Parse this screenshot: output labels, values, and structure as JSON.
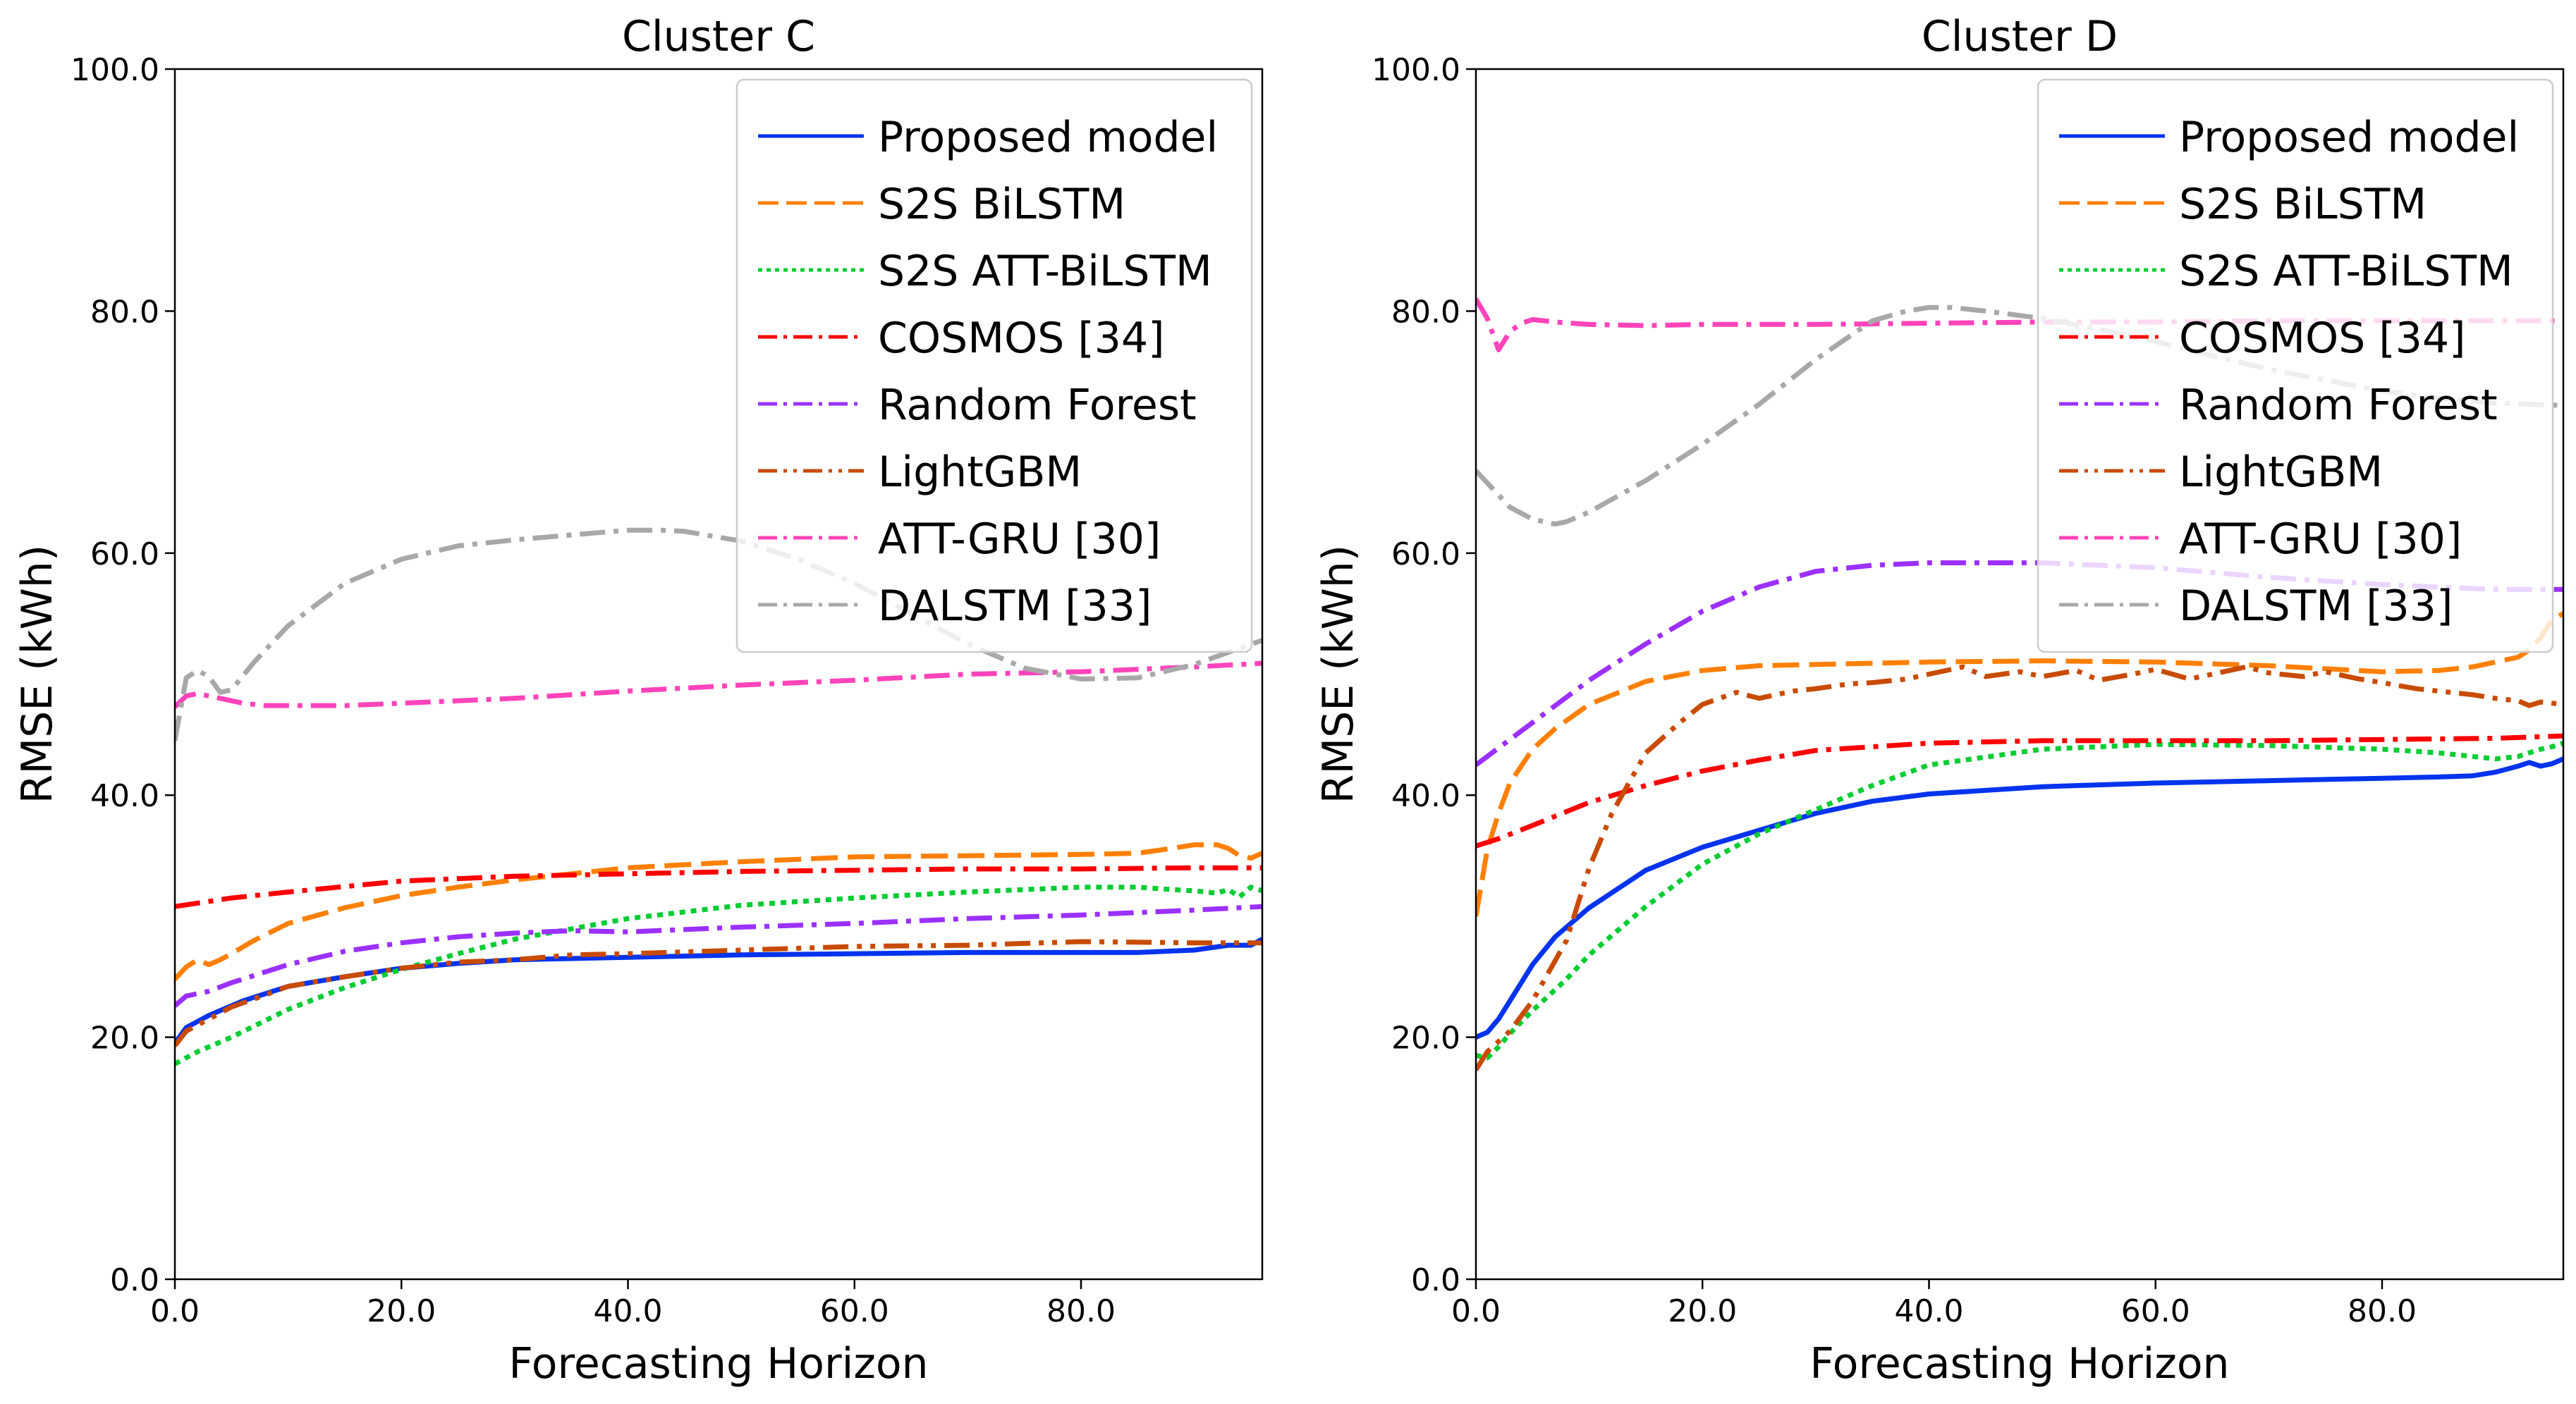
{
  "chart_data": [
    {
      "type": "line",
      "title": "Cluster C",
      "xlabel": "Forecasting Horizon",
      "ylabel": "RMSE (kWh)",
      "xlim": [
        0,
        96
      ],
      "ylim": [
        0,
        100
      ],
      "xticks": [
        0,
        20,
        40,
        60,
        80
      ],
      "yticks": [
        0,
        20,
        40,
        60,
        80,
        100
      ],
      "x_tick_labels": [
        "0.0",
        "20.0",
        "40.0",
        "60.0",
        "80.0"
      ],
      "y_tick_labels": [
        "0.0",
        "20.0",
        "40.0",
        "60.0",
        "80.0",
        "100.0"
      ],
      "grid": false,
      "legend_position": "top-right",
      "series": [
        {
          "name": "Proposed model",
          "color": "#0033ee",
          "dash": "solid",
          "x": [
            0,
            1,
            3,
            6,
            10,
            15,
            20,
            25,
            30,
            40,
            50,
            60,
            70,
            80,
            85,
            90,
            93,
            95,
            96
          ],
          "values": [
            19.5,
            20.8,
            21.8,
            23,
            24.2,
            25,
            25.7,
            26.1,
            26.4,
            26.6,
            26.8,
            26.9,
            27,
            27,
            27,
            27.2,
            27.6,
            27.6,
            28.1
          ]
        },
        {
          "name": "S2S BiLSTM",
          "color": "#ff8000",
          "dash": "dashed",
          "x": [
            0,
            1,
            2,
            3,
            4,
            5,
            7,
            10,
            15,
            20,
            25,
            30,
            40,
            50,
            60,
            70,
            80,
            85,
            88,
            90,
            92,
            93,
            94,
            95,
            96
          ],
          "values": [
            24.8,
            25.8,
            26.4,
            26,
            26.4,
            26.9,
            28,
            29.4,
            30.7,
            31.7,
            32.4,
            33,
            34,
            34.5,
            34.9,
            35,
            35.1,
            35.2,
            35.6,
            35.9,
            35.9,
            35.6,
            35,
            34.8,
            35.2
          ]
        },
        {
          "name": "S2S ATT-BiLSTM",
          "color": "#00cc33",
          "dash": "dotted",
          "x": [
            0,
            2,
            5,
            10,
            15,
            20,
            25,
            30,
            40,
            50,
            60,
            70,
            80,
            85,
            88,
            90,
            92,
            93,
            94,
            95,
            96
          ],
          "values": [
            17.8,
            18.8,
            20,
            22.3,
            24.1,
            25.6,
            26.9,
            28.1,
            29.8,
            30.9,
            31.5,
            32,
            32.4,
            32.4,
            32.2,
            32.1,
            31.9,
            32.2,
            31.6,
            32.4,
            32.1
          ]
        },
        {
          "name": "COSMOS [34]",
          "color": "#ff0000",
          "dash": "dashdot",
          "x": [
            0,
            5,
            10,
            20,
            30,
            40,
            50,
            60,
            70,
            80,
            90,
            96
          ],
          "values": [
            30.8,
            31.5,
            32,
            32.9,
            33.3,
            33.5,
            33.7,
            33.8,
            33.9,
            33.9,
            34,
            34
          ]
        },
        {
          "name": "Random Forest",
          "color": "#9b30ff",
          "dash": "dashdot",
          "x": [
            0,
            1,
            3,
            5,
            10,
            15,
            20,
            25,
            30,
            35,
            40,
            50,
            60,
            70,
            80,
            90,
            96
          ],
          "values": [
            22.6,
            23.4,
            23.8,
            24.5,
            26,
            27.1,
            27.8,
            28.3,
            28.6,
            28.8,
            28.7,
            29.1,
            29.4,
            29.8,
            30.1,
            30.5,
            30.8
          ]
        },
        {
          "name": "LightGBM",
          "color": "#c84b00",
          "dash": "dashdotdot",
          "x": [
            0,
            1,
            3,
            5,
            8,
            10,
            15,
            20,
            25,
            30,
            35,
            40,
            50,
            60,
            70,
            80,
            90,
            96
          ],
          "values": [
            19.3,
            20.5,
            21.5,
            22.5,
            23.5,
            24.2,
            25,
            25.7,
            26.2,
            26.4,
            26.8,
            26.9,
            27.2,
            27.5,
            27.6,
            27.9,
            27.8,
            27.8
          ]
        },
        {
          "name": "ATT-GRU [30]",
          "color": "#ff44bb",
          "dash": "dashdot",
          "x": [
            0,
            1,
            2,
            4,
            6,
            8,
            10,
            15,
            20,
            30,
            40,
            50,
            60,
            70,
            80,
            90,
            96
          ],
          "values": [
            47.3,
            48.2,
            48.4,
            48,
            47.6,
            47.4,
            47.4,
            47.4,
            47.6,
            48,
            48.6,
            49.1,
            49.5,
            50,
            50.2,
            50.6,
            50.9
          ]
        },
        {
          "name": "DALSTM [33]",
          "color": "#a8a8a8",
          "dash": "dashdot",
          "x": [
            0,
            1,
            2,
            3,
            4,
            5,
            7,
            10,
            15,
            20,
            25,
            30,
            35,
            40,
            43,
            45,
            50,
            55,
            60,
            65,
            70,
            75,
            80,
            85,
            90,
            93,
            96
          ],
          "values": [
            44.5,
            49.7,
            50.3,
            49.8,
            48.5,
            48.7,
            51,
            54,
            57.5,
            59.5,
            60.6,
            61.1,
            61.5,
            61.9,
            61.9,
            61.8,
            61,
            59.5,
            57.5,
            55,
            52.5,
            50.5,
            49.6,
            49.7,
            50.8,
            51.8,
            52.8
          ]
        }
      ]
    },
    {
      "type": "line",
      "title": "Cluster D",
      "xlabel": "Forecasting Horizon",
      "ylabel": "RMSE (kWh)",
      "xlim": [
        0,
        96
      ],
      "ylim": [
        0,
        100
      ],
      "xticks": [
        0,
        20,
        40,
        60,
        80
      ],
      "yticks": [
        0,
        20,
        40,
        60,
        80,
        100
      ],
      "x_tick_labels": [
        "0.0",
        "20.0",
        "40.0",
        "60.0",
        "80.0"
      ],
      "y_tick_labels": [
        "0.0",
        "20.0",
        "40.0",
        "60.0",
        "80.0",
        "100.0"
      ],
      "grid": false,
      "legend_position": "top-right",
      "series": [
        {
          "name": "Proposed model",
          "color": "#0033ee",
          "dash": "solid",
          "x": [
            0,
            1,
            2,
            3,
            5,
            7,
            10,
            15,
            20,
            25,
            30,
            35,
            40,
            50,
            60,
            70,
            80,
            85,
            88,
            90,
            92,
            93,
            94,
            95,
            96
          ],
          "values": [
            20,
            20.4,
            21.5,
            23,
            26,
            28.3,
            30.7,
            33.8,
            35.7,
            37.1,
            38.5,
            39.5,
            40.1,
            40.7,
            41,
            41.2,
            41.4,
            41.5,
            41.6,
            41.9,
            42.4,
            42.7,
            42.4,
            42.6,
            43
          ]
        },
        {
          "name": "S2S BiLSTM",
          "color": "#ff8000",
          "dash": "dashed",
          "x": [
            0,
            1,
            2,
            3,
            5,
            7,
            10,
            15,
            20,
            25,
            30,
            40,
            50,
            60,
            70,
            80,
            85,
            88,
            90,
            92,
            93,
            94,
            95,
            96
          ],
          "values": [
            30,
            35.5,
            38.5,
            41,
            43.8,
            45.5,
            47.5,
            49.4,
            50.3,
            50.7,
            50.8,
            51,
            51.1,
            51,
            50.7,
            50.2,
            50.3,
            50.6,
            51,
            51.4,
            52,
            53,
            54.5,
            55
          ]
        },
        {
          "name": "S2S ATT-BiLSTM",
          "color": "#00cc33",
          "dash": "dotted",
          "x": [
            0,
            1,
            2,
            3,
            5,
            8,
            10,
            15,
            20,
            25,
            30,
            35,
            40,
            50,
            60,
            70,
            80,
            85,
            88,
            90,
            92,
            93,
            94,
            95,
            96
          ],
          "values": [
            18.5,
            18.3,
            19.2,
            20.3,
            22.2,
            24.8,
            26.8,
            30.8,
            34.3,
            36.8,
            38.8,
            40.8,
            42.5,
            43.8,
            44.2,
            44.1,
            43.8,
            43.5,
            43.2,
            43,
            43.2,
            43.5,
            43.8,
            44,
            44.3
          ]
        },
        {
          "name": "COSMOS [34]",
          "color": "#ff0000",
          "dash": "dashdot",
          "x": [
            0,
            2,
            5,
            10,
            15,
            20,
            25,
            30,
            40,
            50,
            60,
            70,
            80,
            90,
            96
          ],
          "values": [
            35.8,
            36.4,
            37.5,
            39.4,
            40.8,
            42,
            42.9,
            43.7,
            44.3,
            44.5,
            44.5,
            44.5,
            44.6,
            44.7,
            44.9
          ]
        },
        {
          "name": "Random Forest",
          "color": "#9b30ff",
          "dash": "dashdot",
          "x": [
            0,
            5,
            10,
            15,
            20,
            25,
            30,
            35,
            40,
            45,
            50,
            55,
            60,
            65,
            70,
            75,
            80,
            85,
            90,
            96
          ],
          "values": [
            42.5,
            46,
            49.5,
            52.5,
            55.2,
            57.2,
            58.5,
            59,
            59.2,
            59.2,
            59.2,
            59,
            58.8,
            58.4,
            58,
            57.7,
            57.4,
            57.2,
            57,
            57
          ]
        },
        {
          "name": "LightGBM",
          "color": "#c84b00",
          "dash": "dashdotdot",
          "x": [
            0,
            1,
            3,
            5,
            8,
            10,
            12,
            15,
            18,
            20,
            23,
            25,
            28,
            30,
            33,
            35,
            38,
            40,
            43,
            45,
            48,
            50,
            53,
            55,
            58,
            60,
            63,
            65,
            68,
            70,
            73,
            75,
            78,
            80,
            83,
            85,
            88,
            90,
            92,
            93,
            94,
            95,
            96
          ],
          "values": [
            17.3,
            18.8,
            20.5,
            23,
            28,
            34,
            38.5,
            43.5,
            46,
            47.5,
            48.5,
            48,
            48.6,
            48.8,
            49.2,
            49.3,
            49.6,
            50,
            50.6,
            49.8,
            50.2,
            49.8,
            50.3,
            49.5,
            50,
            50.4,
            49.6,
            50,
            50.6,
            50.1,
            49.8,
            50.2,
            49.6,
            49.3,
            48.8,
            48.6,
            48.3,
            48,
            47.8,
            47.4,
            47.7,
            47.6,
            47.5
          ]
        },
        {
          "name": "ATT-GRU [30]",
          "color": "#ff44bb",
          "dash": "dashdot",
          "x": [
            0,
            1,
            2,
            3,
            4,
            5,
            7,
            10,
            15,
            20,
            30,
            40,
            50,
            60,
            70,
            80,
            90,
            96
          ],
          "values": [
            81,
            79.4,
            76.8,
            78.3,
            79,
            79.3,
            79.1,
            78.9,
            78.8,
            78.9,
            78.9,
            79,
            79.1,
            79.1,
            79.2,
            79.2,
            79.2,
            79.2
          ]
        },
        {
          "name": "DALSTM [33]",
          "color": "#a8a8a8",
          "dash": "dashdot",
          "x": [
            0,
            1,
            3,
            5,
            7,
            8,
            10,
            15,
            20,
            25,
            30,
            35,
            38,
            40,
            42,
            45,
            50,
            55,
            60,
            65,
            70,
            75,
            80,
            85,
            90,
            96
          ],
          "values": [
            66.8,
            65.8,
            63.8,
            62.8,
            62.4,
            62.6,
            63.4,
            66,
            69,
            72.3,
            76,
            79.2,
            80,
            80.3,
            80.3,
            80,
            79.4,
            78.5,
            77.5,
            76.3,
            75.2,
            74.3,
            73.4,
            72.8,
            72.4,
            72.2
          ]
        }
      ]
    }
  ]
}
